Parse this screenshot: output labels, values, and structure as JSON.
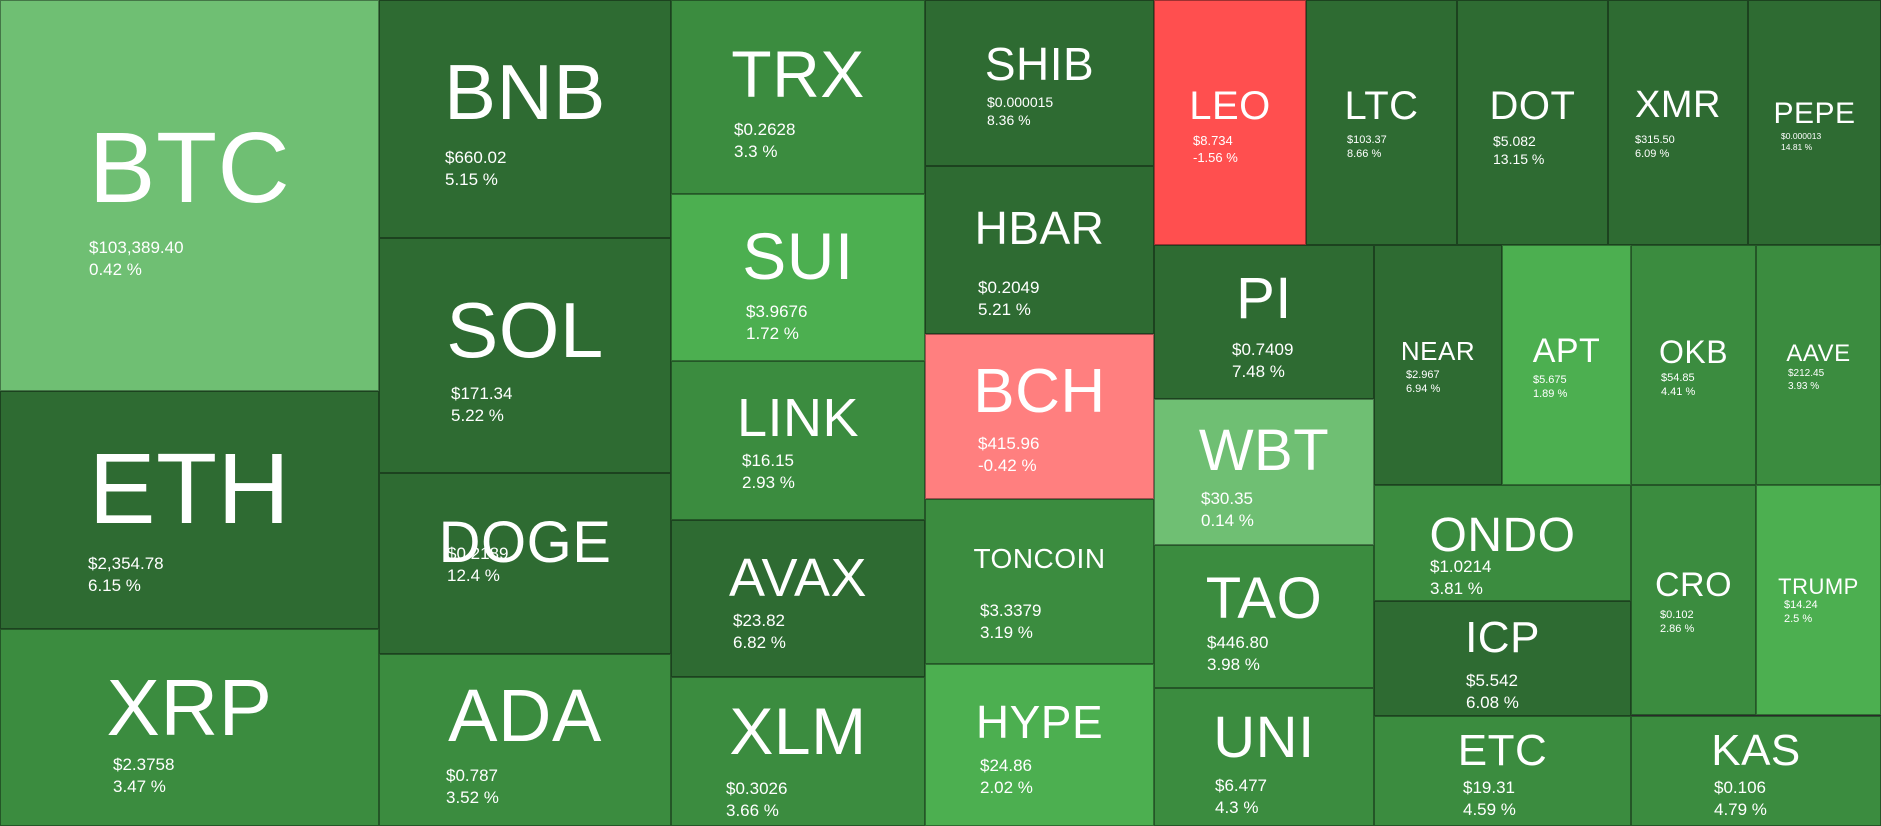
{
  "chart_data": {
    "type": "treemap",
    "title": "",
    "colors": {
      "dark_green": "#2e6b32",
      "mid_green": "#3b8c3f",
      "bright_green": "#4caf50",
      "light_green": "#6fbf73",
      "red": "#ff4f4f",
      "light_red": "#ff7f7f"
    },
    "items": [
      {
        "symbol": "BTC",
        "price": "$103,389.40",
        "change": "0.42 %",
        "change_value": 0.42,
        "color": "#6fbf73"
      },
      {
        "symbol": "ETH",
        "price": "$2,354.78",
        "change": "6.15 %",
        "change_value": 6.15,
        "color": "#2e6b32"
      },
      {
        "symbol": "XRP",
        "price": "$2.3758",
        "change": "3.47 %",
        "change_value": 3.47,
        "color": "#3b8c3f"
      },
      {
        "symbol": "BNB",
        "price": "$660.02",
        "change": "5.15 %",
        "change_value": 5.15,
        "color": "#2e6b32"
      },
      {
        "symbol": "SOL",
        "price": "$171.34",
        "change": "5.22 %",
        "change_value": 5.22,
        "color": "#2e6b32"
      },
      {
        "symbol": "DOGE",
        "price": "$0.2189",
        "change": "12.4 %",
        "change_value": 12.4,
        "color": "#2e6b32"
      },
      {
        "symbol": "ADA",
        "price": "$0.787",
        "change": "3.52 %",
        "change_value": 3.52,
        "color": "#3b8c3f"
      },
      {
        "symbol": "TRX",
        "price": "$0.2628",
        "change": "3.3 %",
        "change_value": 3.3,
        "color": "#3b8c3f"
      },
      {
        "symbol": "SUI",
        "price": "$3.9676",
        "change": "1.72 %",
        "change_value": 1.72,
        "color": "#4caf50"
      },
      {
        "symbol": "LINK",
        "price": "$16.15",
        "change": "2.93 %",
        "change_value": 2.93,
        "color": "#3b8c3f"
      },
      {
        "symbol": "AVAX",
        "price": "$23.82",
        "change": "6.82 %",
        "change_value": 6.82,
        "color": "#2e6b32"
      },
      {
        "symbol": "XLM",
        "price": "$0.3026",
        "change": "3.66 %",
        "change_value": 3.66,
        "color": "#3b8c3f"
      },
      {
        "symbol": "SHIB",
        "price": "$0.000015",
        "change": "8.36 %",
        "change_value": 8.36,
        "color": "#2e6b32"
      },
      {
        "symbol": "HBAR",
        "price": "$0.2049",
        "change": "5.21 %",
        "change_value": 5.21,
        "color": "#2e6b32"
      },
      {
        "symbol": "BCH",
        "price": "$415.96",
        "change": "-0.42 %",
        "change_value": -0.42,
        "color": "#ff7f7f"
      },
      {
        "symbol": "TONCOIN",
        "price": "$3.3379",
        "change": "3.19 %",
        "change_value": 3.19,
        "color": "#3b8c3f"
      },
      {
        "symbol": "HYPE",
        "price": "$24.86",
        "change": "2.02 %",
        "change_value": 2.02,
        "color": "#4caf50"
      },
      {
        "symbol": "LEO",
        "price": "$8.734",
        "change": "-1.56 %",
        "change_value": -1.56,
        "color": "#ff4f4f"
      },
      {
        "symbol": "LTC",
        "price": "$103.37",
        "change": "8.66 %",
        "change_value": 8.66,
        "color": "#2e6b32"
      },
      {
        "symbol": "DOT",
        "price": "$5.082",
        "change": "13.15 %",
        "change_value": 13.15,
        "color": "#2e6b32"
      },
      {
        "symbol": "XMR",
        "price": "$315.50",
        "change": "6.09 %",
        "change_value": 6.09,
        "color": "#2e6b32"
      },
      {
        "symbol": "PEPE",
        "price": "$0.000013",
        "change": "14.81 %",
        "change_value": 14.81,
        "color": "#2e6b32"
      },
      {
        "symbol": "PI",
        "price": "$0.7409",
        "change": "7.48 %",
        "change_value": 7.48,
        "color": "#2e6b32"
      },
      {
        "symbol": "WBT",
        "price": "$30.35",
        "change": "0.14 %",
        "change_value": 0.14,
        "color": "#6fbf73"
      },
      {
        "symbol": "TAO",
        "price": "$446.80",
        "change": "3.98 %",
        "change_value": 3.98,
        "color": "#3b8c3f"
      },
      {
        "symbol": "UNI",
        "price": "$6.477",
        "change": "4.3 %",
        "change_value": 4.3,
        "color": "#3b8c3f"
      },
      {
        "symbol": "NEAR",
        "price": "$2.967",
        "change": "6.94 %",
        "change_value": 6.94,
        "color": "#2e6b32"
      },
      {
        "symbol": "APT",
        "price": "$5.675",
        "change": "1.89 %",
        "change_value": 1.89,
        "color": "#4caf50"
      },
      {
        "symbol": "OKB",
        "price": "$54.85",
        "change": "4.41 %",
        "change_value": 4.41,
        "color": "#3b8c3f"
      },
      {
        "symbol": "AAVE",
        "price": "$212.45",
        "change": "3.93 %",
        "change_value": 3.93,
        "color": "#3b8c3f"
      },
      {
        "symbol": "ONDO",
        "price": "$1.0214",
        "change": "3.81 %",
        "change_value": 3.81,
        "color": "#3b8c3f"
      },
      {
        "symbol": "ICP",
        "price": "$5.542",
        "change": "6.08 %",
        "change_value": 6.08,
        "color": "#2e6b32"
      },
      {
        "symbol": "CRO",
        "price": "$0.102",
        "change": "2.86 %",
        "change_value": 2.86,
        "color": "#3b8c3f"
      },
      {
        "symbol": "TRUMP",
        "price": "$14.24",
        "change": "2.5 %",
        "change_value": 2.5,
        "color": "#4caf50"
      },
      {
        "symbol": "ETC",
        "price": "$19.31",
        "change": "4.59 %",
        "change_value": 4.59,
        "color": "#3b8c3f"
      },
      {
        "symbol": "KAS",
        "price": "$0.106",
        "change": "4.79 %",
        "change_value": 4.79,
        "color": "#3b8c3f"
      }
    ]
  }
}
